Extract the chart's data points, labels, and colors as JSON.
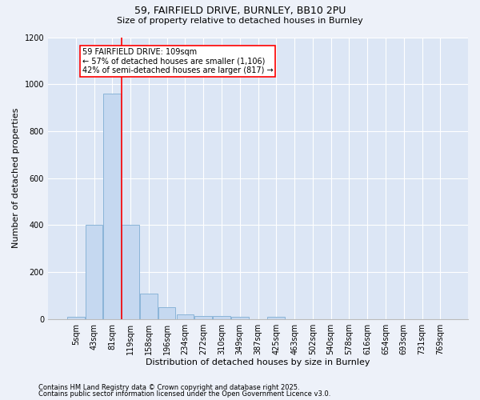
{
  "title1": "59, FAIRFIELD DRIVE, BURNLEY, BB10 2PU",
  "title2": "Size of property relative to detached houses in Burnley",
  "xlabel": "Distribution of detached houses by size in Burnley",
  "ylabel": "Number of detached properties",
  "footnote1": "Contains HM Land Registry data © Crown copyright and database right 2025.",
  "footnote2": "Contains public sector information licensed under the Open Government Licence v3.0.",
  "annotation_title": "59 FAIRFIELD DRIVE: 109sqm",
  "annotation_line1": "← 57% of detached houses are smaller (1,106)",
  "annotation_line2": "42% of semi-detached houses are larger (817) →",
  "bar_labels": [
    "5sqm",
    "43sqm",
    "81sqm",
    "119sqm",
    "158sqm",
    "196sqm",
    "234sqm",
    "272sqm",
    "310sqm",
    "349sqm",
    "387sqm",
    "425sqm",
    "463sqm",
    "502sqm",
    "540sqm",
    "578sqm",
    "616sqm",
    "654sqm",
    "693sqm",
    "731sqm",
    "769sqm"
  ],
  "bar_values": [
    10,
    400,
    960,
    400,
    110,
    50,
    20,
    15,
    12,
    10,
    0,
    10,
    0,
    0,
    0,
    0,
    0,
    0,
    0,
    0,
    0
  ],
  "bar_color": "#c5d8f0",
  "bar_edge_color": "#8ab4d8",
  "red_line_x": 2.5,
  "ylim": [
    0,
    1200
  ],
  "yticks": [
    0,
    200,
    400,
    600,
    800,
    1000,
    1200
  ],
  "bg_color": "#edf1f9",
  "plot_bg_color": "#dce6f5",
  "grid_color": "#ffffff",
  "title_fontsize": 9,
  "subtitle_fontsize": 8,
  "ylabel_fontsize": 8,
  "xlabel_fontsize": 8,
  "tick_fontsize": 7,
  "annotation_fontsize": 7,
  "footnote_fontsize": 6
}
